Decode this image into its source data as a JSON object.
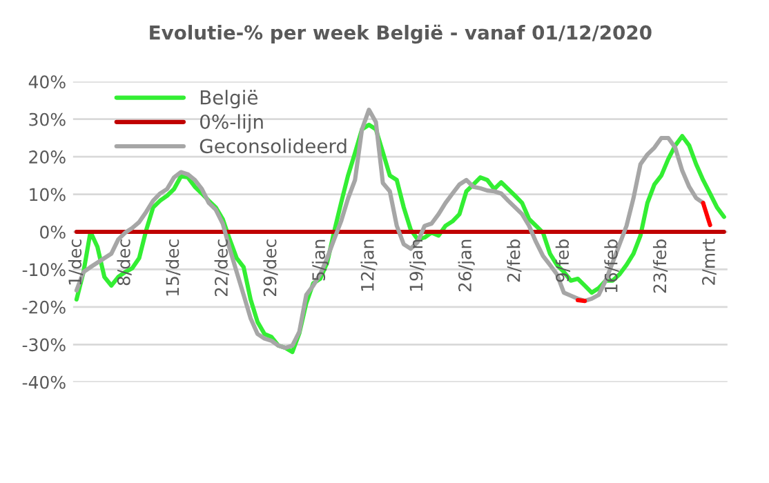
{
  "chart_data": {
    "type": "line",
    "title": "Evolutie-% per week België - vanaf 01/12/2020",
    "xlim": [
      "2020-11-30T12:00",
      "2021-03-04T12:00"
    ],
    "xticks": [
      {
        "value": "2020-12-01",
        "label": "1/dec"
      },
      {
        "value": "2020-12-08",
        "label": "8/dec"
      },
      {
        "value": "2020-12-15",
        "label": "15/dec"
      },
      {
        "value": "2020-12-22",
        "label": "22/dec"
      },
      {
        "value": "2020-12-29",
        "label": "29/dec"
      },
      {
        "value": "2021-01-05",
        "label": "5/jan"
      },
      {
        "value": "2021-01-12",
        "label": "12/jan"
      },
      {
        "value": "2021-01-19",
        "label": "19/jan"
      },
      {
        "value": "2021-01-26",
        "label": "26/jan"
      },
      {
        "value": "2021-02-02",
        "label": "2/feb"
      },
      {
        "value": "2021-02-09",
        "label": "9/feb"
      },
      {
        "value": "2021-02-16",
        "label": "16/feb"
      },
      {
        "value": "2021-02-23",
        "label": "23/feb"
      },
      {
        "value": "2021-03-02",
        "label": "2/mrt"
      }
    ],
    "ylim": [
      -40,
      40
    ],
    "yticks": [
      {
        "value": -40,
        "label": "-40%"
      },
      {
        "value": -30,
        "label": "-30%"
      },
      {
        "value": -20,
        "label": "-20%"
      },
      {
        "value": -10,
        "label": "-10%"
      },
      {
        "value": 0,
        "label": "0%"
      },
      {
        "value": 10,
        "label": "10%"
      },
      {
        "value": 20,
        "label": "20%"
      },
      {
        "value": 30,
        "label": "30%"
      },
      {
        "value": 40,
        "label": "40%"
      }
    ],
    "grid": "y",
    "legend": "top left",
    "marker": "none",
    "line_style": "solid",
    "series": [
      {
        "name": "België",
        "color": "#33ee33",
        "x": [
          "2020-12-01",
          "2020-12-02",
          "2020-12-03",
          "2020-12-04",
          "2020-12-05",
          "2020-12-06",
          "2020-12-07",
          "2020-12-08",
          "2020-12-09",
          "2020-12-10",
          "2020-12-11",
          "2020-12-12",
          "2020-12-13",
          "2020-12-14",
          "2020-12-15",
          "2020-12-16",
          "2020-12-17",
          "2020-12-18",
          "2020-12-19",
          "2020-12-20",
          "2020-12-21",
          "2020-12-22",
          "2020-12-23",
          "2020-12-24",
          "2020-12-25",
          "2020-12-26",
          "2020-12-27",
          "2020-12-28",
          "2020-12-29",
          "2020-12-30",
          "2020-12-31",
          "2021-01-01",
          "2021-01-02",
          "2021-01-03",
          "2021-01-04",
          "2021-01-05",
          "2021-01-06",
          "2021-01-07",
          "2021-01-08",
          "2021-01-09",
          "2021-01-10",
          "2021-01-11",
          "2021-01-12",
          "2021-01-13",
          "2021-01-14",
          "2021-01-15",
          "2021-01-16",
          "2021-01-17",
          "2021-01-18",
          "2021-01-19",
          "2021-01-20",
          "2021-01-21",
          "2021-01-22",
          "2021-01-23",
          "2021-01-24",
          "2021-01-25",
          "2021-01-26",
          "2021-01-27",
          "2021-01-28",
          "2021-01-29",
          "2021-01-30",
          "2021-01-31",
          "2021-02-01",
          "2021-02-02",
          "2021-02-03",
          "2021-02-04",
          "2021-02-05",
          "2021-02-06",
          "2021-02-07",
          "2021-02-08",
          "2021-02-09",
          "2021-02-10",
          "2021-02-11",
          "2021-02-12",
          "2021-02-13",
          "2021-02-14",
          "2021-02-15",
          "2021-02-16",
          "2021-02-17",
          "2021-02-18",
          "2021-02-19",
          "2021-02-20",
          "2021-02-21",
          "2021-02-22",
          "2021-02-23",
          "2021-02-24",
          "2021-02-25",
          "2021-02-26",
          "2021-02-27",
          "2021-02-28",
          "2021-03-01",
          "2021-03-02",
          "2021-03-03",
          "2021-03-04"
        ],
        "values": [
          -18,
          -10.7,
          0,
          -4,
          -12,
          -14.3,
          -12,
          -10.7,
          -9.7,
          -7,
          0.4,
          6.5,
          8.3,
          9.6,
          11.4,
          14.8,
          14.5,
          12,
          10.2,
          8.3,
          6.5,
          3.4,
          -2,
          -7,
          -9.4,
          -18,
          -24,
          -27.2,
          -28,
          -30.3,
          -30.9,
          -32,
          -27,
          -19,
          -13.7,
          -12.5,
          -8.2,
          0,
          7.7,
          15,
          21,
          27.3,
          28.5,
          27.3,
          21.2,
          15,
          13.8,
          6.5,
          0.6,
          -2,
          -1.5,
          -0.2,
          -1,
          1.6,
          2.8,
          4.7,
          10.8,
          12.6,
          14.5,
          13.8,
          11.4,
          13.2,
          11.4,
          9.6,
          7.7,
          3.4,
          1.6,
          -0.2,
          -5.8,
          -8.8,
          -10.7,
          -13,
          -12.5,
          -14.3,
          -16.2,
          -15,
          -13,
          -13,
          -11.3,
          -8.8,
          -5.8,
          -1,
          7.7,
          12.6,
          15,
          19.4,
          23,
          25.5,
          23,
          18,
          13.8,
          10.2,
          6.5,
          4
        ]
      },
      {
        "name": "0%-lijn",
        "color": "#c00000",
        "x": [
          "2020-12-01",
          "2021-03-04"
        ],
        "values": [
          0,
          0
        ]
      },
      {
        "name": "Geconsolideerd",
        "color": "#a6a6a6",
        "x": [
          "2020-12-01",
          "2020-12-02",
          "2020-12-03",
          "2020-12-04",
          "2020-12-05",
          "2020-12-06",
          "2020-12-07",
          "2020-12-08",
          "2020-12-09",
          "2020-12-10",
          "2020-12-11",
          "2020-12-12",
          "2020-12-13",
          "2020-12-14",
          "2020-12-15",
          "2020-12-16",
          "2020-12-17",
          "2020-12-18",
          "2020-12-19",
          "2020-12-20",
          "2020-12-21",
          "2020-12-22",
          "2020-12-23",
          "2020-12-24",
          "2020-12-25",
          "2020-12-26",
          "2020-12-27",
          "2020-12-28",
          "2020-12-29",
          "2020-12-30",
          "2020-12-31",
          "2021-01-01",
          "2021-01-02",
          "2021-01-03",
          "2021-01-04",
          "2021-01-05",
          "2021-01-06",
          "2021-01-07",
          "2021-01-08",
          "2021-01-09",
          "2021-01-10",
          "2021-01-11",
          "2021-01-12",
          "2021-01-13",
          "2021-01-14",
          "2021-01-15",
          "2021-01-16",
          "2021-01-17",
          "2021-01-18",
          "2021-01-19",
          "2021-01-20",
          "2021-01-21",
          "2021-01-22",
          "2021-01-23",
          "2021-01-24",
          "2021-01-25",
          "2021-01-26",
          "2021-01-27",
          "2021-01-28",
          "2021-01-29",
          "2021-01-30",
          "2021-01-31",
          "2021-02-01",
          "2021-02-02",
          "2021-02-03",
          "2021-02-04",
          "2021-02-05",
          "2021-02-06",
          "2021-02-07",
          "2021-02-08",
          "2021-02-09",
          "2021-02-10",
          "2021-02-11",
          "2021-02-12",
          "2021-02-13",
          "2021-02-14",
          "2021-02-15",
          "2021-02-16",
          "2021-02-17",
          "2021-02-18",
          "2021-02-19",
          "2021-02-20",
          "2021-02-21",
          "2021-02-22",
          "2021-02-23",
          "2021-02-24",
          "2021-02-25",
          "2021-02-26",
          "2021-02-27",
          "2021-02-28",
          "2021-03-01"
        ],
        "values": [
          -15.6,
          -10.7,
          -9.4,
          -8.2,
          -7,
          -5.8,
          -2,
          -0.2,
          1,
          2.6,
          5.3,
          8.3,
          10.2,
          11.4,
          14.5,
          15.9,
          15.3,
          13.8,
          11.4,
          7.7,
          5.9,
          2.2,
          -4.5,
          -10.7,
          -16.8,
          -23,
          -27.2,
          -28.4,
          -29,
          -30.3,
          -30.9,
          -30.3,
          -26.6,
          -16.8,
          -14.3,
          -11.3,
          -7,
          -2,
          2.8,
          8.9,
          13.8,
          27.3,
          32.5,
          29.2,
          13,
          10.8,
          1.6,
          -3.3,
          -4.5,
          -2.7,
          1.6,
          2.2,
          4.7,
          7.7,
          10.2,
          12.6,
          13.8,
          12,
          11.6,
          11,
          10.8,
          10.2,
          8.3,
          6.5,
          4.7,
          1.6,
          -2.7,
          -6.4,
          -8.8,
          -11.3,
          -16.2,
          -17,
          -17.8,
          -18.4,
          -17.8,
          -16.8,
          -13,
          -8.2,
          -3.3,
          1.6,
          9,
          18,
          20.6,
          22.4,
          25,
          25,
          22.4,
          16.3,
          12,
          9,
          7.7
        ]
      },
      {
        "color": "#ff0000",
        "x": [
          "2021-02-11",
          "2021-02-12",
          "2021-02-13",
          "2021-03-01",
          "2021-03-02"
        ],
        "values": [
          -18.2,
          -18.4,
          null,
          7.7,
          1.8
        ]
      }
    ]
  }
}
